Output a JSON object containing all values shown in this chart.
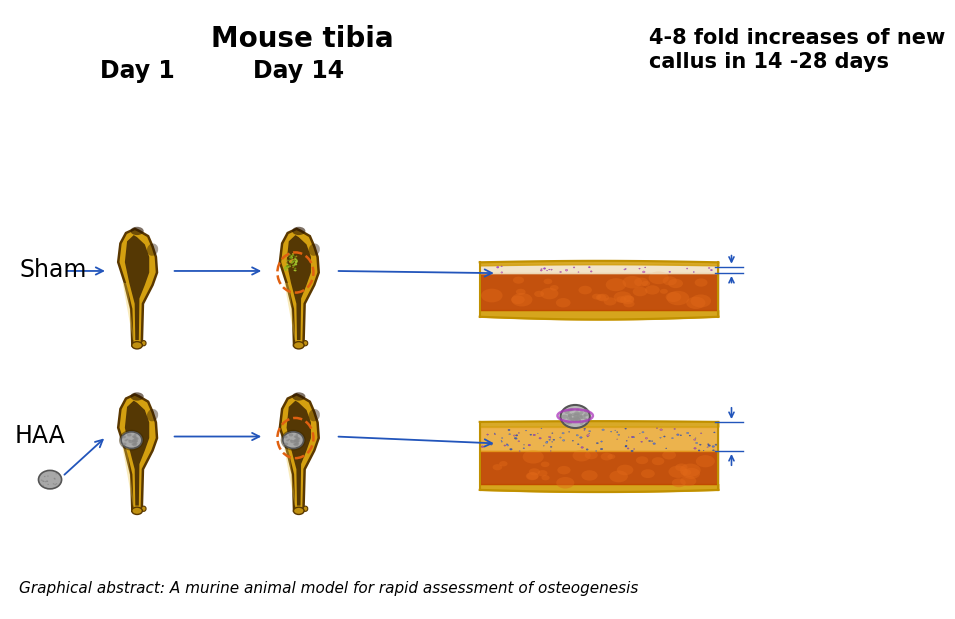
{
  "title": "Mouse tibia",
  "title_fontsize": 20,
  "title_fontweight": "bold",
  "label_day1": "Day 1",
  "label_day14": "Day 14",
  "col_header_fontsize": 17,
  "label_sham": "Sham",
  "label_haa": "HAA",
  "row_label_fontsize": 17,
  "annotation_text": "4-8 fold increases of new\ncallus in 14 -28 days",
  "annotation_fontsize": 15,
  "caption": "Graphical abstract: A murine animal model for rapid assessment of osteogenesis",
  "caption_fontsize": 11,
  "bg_color": "#ffffff",
  "arrow_color": "#2255BB",
  "dashed_circle_color": "#E06010"
}
